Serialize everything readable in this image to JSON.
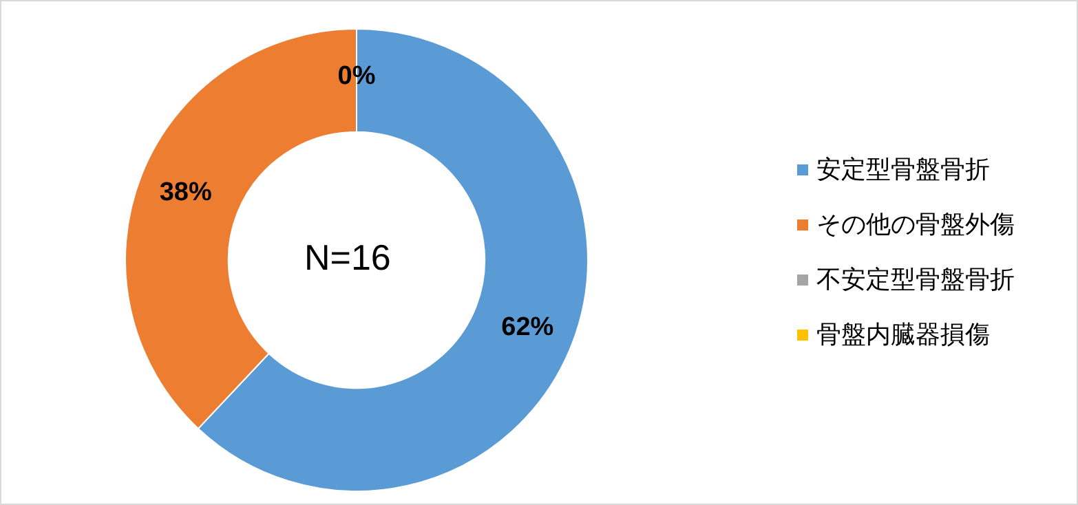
{
  "chart_data": {
    "type": "donut",
    "categories": [
      "安定型骨盤骨折",
      "その他の骨盤外傷",
      "不安定型骨盤骨折",
      "骨盤内臓器損傷"
    ],
    "values": [
      62,
      38,
      0,
      0
    ],
    "colors": [
      "#5b9bd5",
      "#ed7d31",
      "#a5a5a5",
      "#ffc000"
    ],
    "value_labels": [
      "62%",
      "38%",
      "0%",
      null
    ],
    "annotations": [
      "N=16"
    ],
    "legend": "right"
  }
}
